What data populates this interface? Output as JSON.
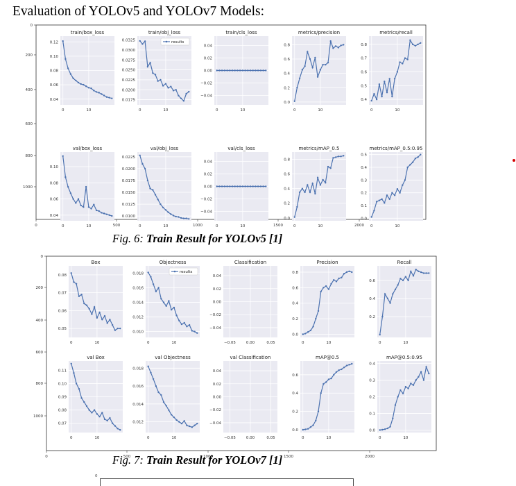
{
  "heading": "Evaluation of YOLOv5 and YOLOv7 Models:",
  "legend_label": "results",
  "figures": [
    {
      "id": "yolov5",
      "caption_label": "Fig. 6: ",
      "caption_title": "Train Result for YOLOv5 [1]",
      "outer_axis": {
        "x_ticks": [
          "0",
          "500",
          "1000",
          "1500",
          "2000"
        ],
        "y_ticks": [
          "0",
          "200",
          "400",
          "600",
          "800",
          "1000"
        ]
      },
      "chart_data": [
        {
          "type": "line",
          "title": "train/box_loss",
          "yticks": [
            "0.12",
            "0.10",
            "0.08",
            "0.06",
            "0.04"
          ],
          "ylim": [
            0.032,
            0.128
          ],
          "xticks": [
            "0",
            "10"
          ],
          "xlim": [
            -1,
            20
          ],
          "values": [
            0.121,
            0.096,
            0.083,
            0.075,
            0.069,
            0.066,
            0.063,
            0.061,
            0.06,
            0.058,
            0.056,
            0.055,
            0.052,
            0.05,
            0.049,
            0.047,
            0.045,
            0.043,
            0.042,
            0.041
          ]
        },
        {
          "type": "line",
          "title": "train/obj_loss",
          "yticks": [
            "0.0325",
            "0.0300",
            "0.0275",
            "0.0250",
            "0.0225",
            "0.0200",
            "0.0175"
          ],
          "ylim": [
            0.0162,
            0.0335
          ],
          "xticks": [
            "0",
            "10"
          ],
          "xlim": [
            -1,
            20
          ],
          "values": [
            0.0323,
            0.0315,
            0.0322,
            0.0258,
            0.0268,
            0.0242,
            0.0238,
            0.0222,
            0.0225,
            0.021,
            0.0215,
            0.0205,
            0.0208,
            0.0198,
            0.02,
            0.0185,
            0.0178,
            0.0172,
            0.019,
            0.0195
          ]
        },
        {
          "type": "line",
          "title": "train/cls_loss",
          "yticks": [
            "0.04",
            "0.02",
            "0.00",
            "−0.02",
            "−0.04"
          ],
          "ylim": [
            -0.055,
            0.055
          ],
          "xticks": [
            "0",
            "10"
          ],
          "xlim": [
            -1,
            20
          ],
          "values": [
            0,
            0,
            0,
            0,
            0,
            0,
            0,
            0,
            0,
            0,
            0,
            0,
            0,
            0,
            0,
            0,
            0,
            0,
            0,
            0
          ]
        },
        {
          "type": "line",
          "title": "metrics/precision",
          "yticks": [
            "0.8",
            "0.6",
            "0.4",
            "0.2",
            "0.0"
          ],
          "ylim": [
            -0.04,
            0.92
          ],
          "xticks": [
            "0",
            "10"
          ],
          "xlim": [
            -1,
            20
          ],
          "values": [
            0.01,
            0.2,
            0.33,
            0.45,
            0.5,
            0.7,
            0.6,
            0.48,
            0.62,
            0.35,
            0.45,
            0.52,
            0.52,
            0.55,
            0.85,
            0.75,
            0.78,
            0.76,
            0.79,
            0.8
          ]
        },
        {
          "type": "line",
          "title": "metrics/recall",
          "yticks": [
            "0.8",
            "0.7",
            "0.6",
            "0.5",
            "0.4"
          ],
          "ylim": [
            0.36,
            0.86
          ],
          "xticks": [
            "0",
            "10"
          ],
          "xlim": [
            -1,
            20
          ],
          "values": [
            0.39,
            0.44,
            0.4,
            0.51,
            0.42,
            0.53,
            0.45,
            0.55,
            0.42,
            0.55,
            0.6,
            0.67,
            0.66,
            0.7,
            0.69,
            0.83,
            0.8,
            0.79,
            0.8,
            0.81
          ]
        },
        {
          "type": "line",
          "title": "val/box_loss",
          "yticks": [
            "0.10",
            "0.08",
            "0.06",
            "0.04"
          ],
          "ylim": [
            0.033,
            0.118
          ],
          "xticks": [
            "0",
            "10"
          ],
          "xlim": [
            -1,
            20
          ],
          "values": [
            0.113,
            0.087,
            0.075,
            0.067,
            0.06,
            0.055,
            0.06,
            0.052,
            0.05,
            0.075,
            0.05,
            0.048,
            0.053,
            0.046,
            0.045,
            0.043,
            0.042,
            0.041,
            0.04,
            0.039
          ]
        },
        {
          "type": "line",
          "title": "val/obj_loss",
          "yticks": [
            "0.0225",
            "0.0200",
            "0.0175",
            "0.0150",
            "0.0125",
            "0.0100"
          ],
          "ylim": [
            0.009,
            0.0235
          ],
          "xticks": [
            "0",
            "10"
          ],
          "xlim": [
            -1,
            20
          ],
          "values": [
            0.0228,
            0.021,
            0.02,
            0.0175,
            0.0158,
            0.0155,
            0.0145,
            0.0135,
            0.0125,
            0.0118,
            0.0113,
            0.0108,
            0.0104,
            0.0101,
            0.0099,
            0.0098,
            0.0096,
            0.0095,
            0.0095,
            0.0094
          ]
        },
        {
          "type": "line",
          "title": "val/cls_loss",
          "yticks": [
            "0.04",
            "0.02",
            "0.00",
            "−0.02",
            "−0.04"
          ],
          "ylim": [
            -0.055,
            0.055
          ],
          "xticks": [
            "0",
            "10"
          ],
          "xlim": [
            -1,
            20
          ],
          "values": [
            0,
            0,
            0,
            0,
            0,
            0,
            0,
            0,
            0,
            0,
            0,
            0,
            0,
            0,
            0,
            0,
            0,
            0,
            0,
            0
          ]
        },
        {
          "type": "line",
          "title": "metrics/mAP_0.5",
          "yticks": [
            "0.8",
            "0.6",
            "0.4",
            "0.2",
            "0.0"
          ],
          "ylim": [
            -0.04,
            0.9
          ],
          "xticks": [
            "0",
            "10"
          ],
          "xlim": [
            -1,
            20
          ],
          "values": [
            0.01,
            0.15,
            0.35,
            0.4,
            0.35,
            0.45,
            0.35,
            0.47,
            0.33,
            0.55,
            0.45,
            0.52,
            0.48,
            0.7,
            0.68,
            0.82,
            0.83,
            0.84,
            0.84,
            0.85
          ]
        },
        {
          "type": "line",
          "title": "metrics/mAP_0.5:0.95",
          "yticks": [
            "0.5",
            "0.4",
            "0.3",
            "0.2",
            "0.1",
            "0.0"
          ],
          "ylim": [
            -0.02,
            0.52
          ],
          "xticks": [
            "0",
            "10"
          ],
          "xlim": [
            -1,
            20
          ],
          "values": [
            0.01,
            0.06,
            0.13,
            0.14,
            0.15,
            0.12,
            0.18,
            0.15,
            0.2,
            0.18,
            0.23,
            0.2,
            0.26,
            0.3,
            0.4,
            0.42,
            0.44,
            0.47,
            0.48,
            0.5
          ]
        }
      ]
    },
    {
      "id": "yolov7",
      "caption_label": "Fig. 7: ",
      "caption_title": "Train Result for YOLOv7 [1]",
      "outer_axis": {
        "x_ticks": [
          "0",
          "500",
          "1000",
          "1500",
          "2000"
        ],
        "y_ticks": [
          "0",
          "200",
          "400",
          "600",
          "800",
          "1000"
        ]
      },
      "chart_data": [
        {
          "type": "line",
          "title": "Box",
          "yticks": [
            "0.08",
            "0.07",
            "0.06",
            "0.05"
          ],
          "ylim": [
            0.045,
            0.085
          ],
          "xticks": [
            "0",
            "10"
          ],
          "xlim": [
            -1,
            20
          ],
          "values": [
            0.081,
            0.076,
            0.075,
            0.068,
            0.069,
            0.064,
            0.063,
            0.061,
            0.058,
            0.062,
            0.056,
            0.059,
            0.055,
            0.057,
            0.053,
            0.055,
            0.052,
            0.049,
            0.05,
            0.05
          ]
        },
        {
          "type": "line",
          "title": "Objectness",
          "yticks": [
            "0.018",
            "0.016",
            "0.014",
            "0.012",
            "0.010"
          ],
          "ylim": [
            0.0092,
            0.019
          ],
          "xticks": [
            "0",
            "10"
          ],
          "xlim": [
            -1,
            20
          ],
          "values": [
            0.0181,
            0.0175,
            0.0165,
            0.0155,
            0.016,
            0.0145,
            0.014,
            0.0135,
            0.0142,
            0.013,
            0.0133,
            0.0122,
            0.0115,
            0.011,
            0.0112,
            0.0107,
            0.0109,
            0.0101,
            0.01,
            0.0098
          ]
        },
        {
          "type": "line",
          "title": "Classification",
          "yticks": [
            "0.04",
            "0.02",
            "0.00",
            "−0.02",
            "−0.04"
          ],
          "ylim": [
            -0.055,
            0.055
          ],
          "xticks": [
            "−0.05",
            "0.00",
            "0.05"
          ],
          "xlim": [
            -0.066,
            0.066
          ],
          "values": []
        },
        {
          "type": "line",
          "title": "Precision",
          "yticks": [
            "0.8",
            "0.6",
            "0.4",
            "0.2",
            "0.0"
          ],
          "ylim": [
            -0.04,
            0.88
          ],
          "xticks": [
            "0",
            "10"
          ],
          "xlim": [
            -1,
            20
          ],
          "values": [
            0.0,
            0.01,
            0.03,
            0.05,
            0.1,
            0.2,
            0.3,
            0.55,
            0.6,
            0.62,
            0.58,
            0.65,
            0.7,
            0.68,
            0.72,
            0.73,
            0.78,
            0.8,
            0.81,
            0.8
          ]
        },
        {
          "type": "line",
          "title": "Recall",
          "yticks": [
            "0.6",
            "0.4",
            "0.2"
          ],
          "ylim": [
            -0.03,
            0.76
          ],
          "xticks": [
            "0",
            "10"
          ],
          "xlim": [
            -1,
            20
          ],
          "values": [
            0.0,
            0.2,
            0.45,
            0.4,
            0.35,
            0.45,
            0.5,
            0.55,
            0.62,
            0.6,
            0.64,
            0.6,
            0.7,
            0.65,
            0.72,
            0.7,
            0.69,
            0.68,
            0.68,
            0.68
          ]
        },
        {
          "type": "line",
          "title": "val Box",
          "yticks": [
            "0.11",
            "0.10",
            "0.09",
            "0.08",
            "0.07"
          ],
          "ylim": [
            0.063,
            0.117
          ],
          "xticks": [
            "0",
            "10"
          ],
          "xlim": [
            -1,
            20
          ],
          "values": [
            0.115,
            0.108,
            0.1,
            0.096,
            0.089,
            0.086,
            0.083,
            0.08,
            0.078,
            0.08,
            0.077,
            0.075,
            0.078,
            0.073,
            0.072,
            0.074,
            0.07,
            0.068,
            0.066,
            0.065
          ]
        },
        {
          "type": "line",
          "title": "val Objectness",
          "yticks": [
            "0.018",
            "0.016",
            "0.014",
            "0.012"
          ],
          "ylim": [
            0.0108,
            0.0188
          ],
          "xticks": [
            "0",
            "10"
          ],
          "xlim": [
            -1,
            20
          ],
          "values": [
            0.0182,
            0.0175,
            0.0168,
            0.016,
            0.0153,
            0.015,
            0.0142,
            0.0138,
            0.0133,
            0.0128,
            0.0125,
            0.0122,
            0.012,
            0.0118,
            0.0121,
            0.0116,
            0.0115,
            0.0114,
            0.0116,
            0.0118
          ]
        },
        {
          "type": "line",
          "title": "val Classification",
          "yticks": [
            "0.04",
            "0.02",
            "0.00",
            "−0.02",
            "−0.04"
          ],
          "ylim": [
            -0.055,
            0.055
          ],
          "xticks": [
            "−0.05",
            "0.00",
            "0.05"
          ],
          "xlim": [
            -0.066,
            0.066
          ],
          "values": []
        },
        {
          "type": "line",
          "title": "mAP@0.5",
          "yticks": [
            "0.6",
            "0.4",
            "0.2",
            "0.0"
          ],
          "ylim": [
            -0.03,
            0.75
          ],
          "xticks": [
            "0",
            "10"
          ],
          "xlim": [
            -1,
            20
          ],
          "values": [
            0.0,
            0.005,
            0.01,
            0.03,
            0.05,
            0.1,
            0.2,
            0.4,
            0.5,
            0.52,
            0.55,
            0.56,
            0.6,
            0.63,
            0.65,
            0.66,
            0.68,
            0.7,
            0.71,
            0.72
          ]
        },
        {
          "type": "line",
          "title": "mAP@0.5:0.95",
          "yticks": [
            "0.4",
            "0.3",
            "0.2",
            "0.1",
            "0.0"
          ],
          "ylim": [
            -0.015,
            0.415
          ],
          "xticks": [
            "0",
            "10"
          ],
          "xlim": [
            -1,
            20
          ],
          "values": [
            0.0,
            0.002,
            0.005,
            0.01,
            0.02,
            0.07,
            0.15,
            0.2,
            0.24,
            0.22,
            0.26,
            0.25,
            0.28,
            0.27,
            0.3,
            0.32,
            0.35,
            0.3,
            0.38,
            0.34
          ]
        }
      ]
    }
  ]
}
